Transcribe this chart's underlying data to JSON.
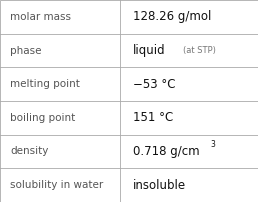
{
  "rows": [
    {
      "label": "molar mass",
      "value": "128.26 g/mol",
      "value_extra": null,
      "superscript": false
    },
    {
      "label": "phase",
      "value": "liquid",
      "value_extra": "(at STP)",
      "superscript": false
    },
    {
      "label": "melting point",
      "value": "−53 °C",
      "value_extra": null,
      "superscript": false
    },
    {
      "label": "boiling point",
      "value": "151 °C",
      "value_extra": null,
      "superscript": false
    },
    {
      "label": "density",
      "value": "0.718 g/cm",
      "value_extra": "3",
      "superscript": true
    },
    {
      "label": "solubility in water",
      "value": "insoluble",
      "value_extra": null,
      "superscript": false
    }
  ],
  "bg_color": "#ffffff",
  "border_color": "#aaaaaa",
  "label_color": "#555555",
  "value_color": "#111111",
  "extra_color": "#777777",
  "label_fontsize": 7.5,
  "value_fontsize": 8.5,
  "extra_fontsize": 6.0,
  "super_fontsize": 5.5,
  "col_split": 0.465,
  "fig_width": 2.58,
  "fig_height": 2.02,
  "dpi": 100
}
